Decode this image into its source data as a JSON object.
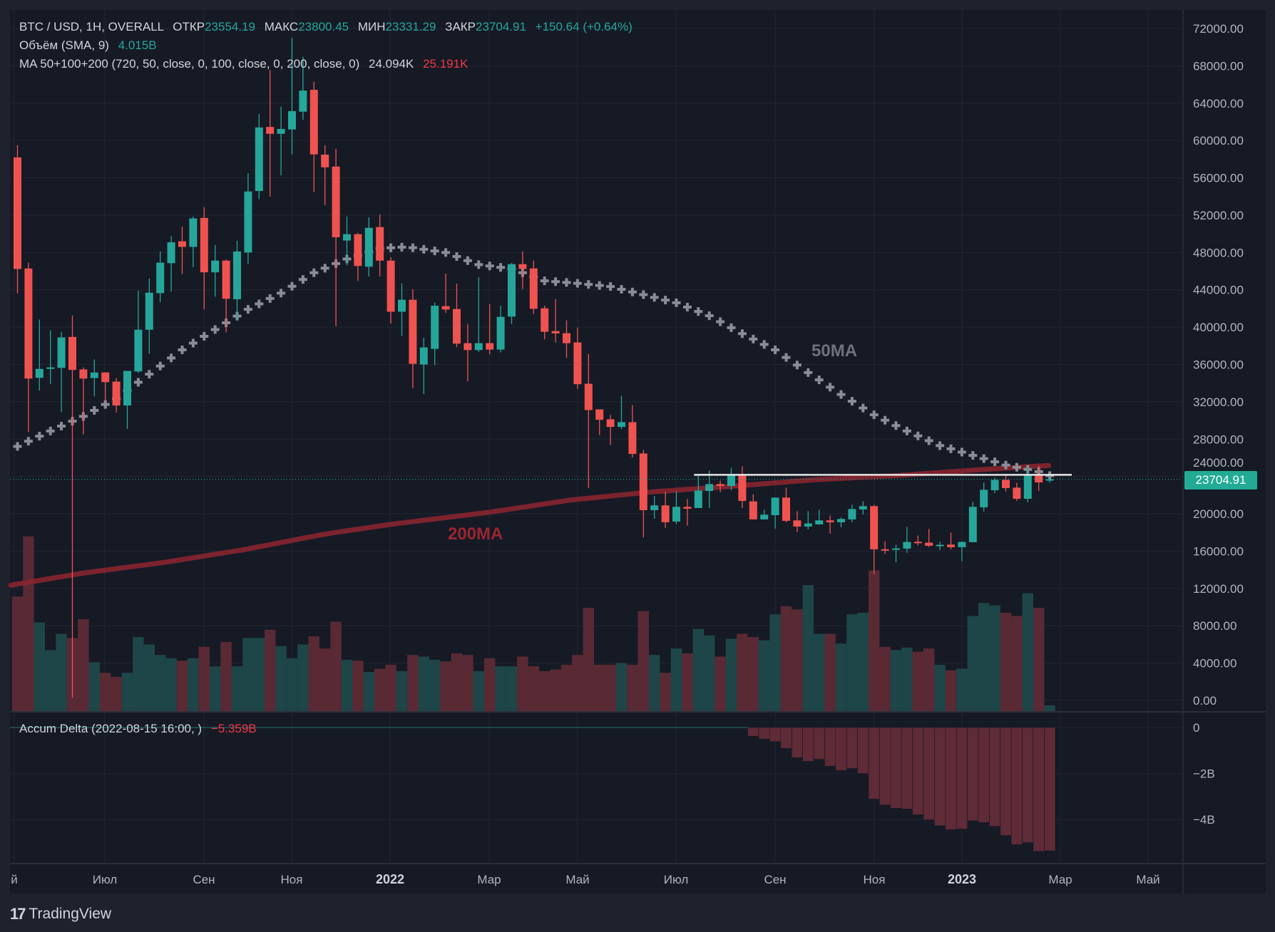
{
  "legend": {
    "symbol": "BTC / USD, 1H, OVERALL",
    "open_label": "ОТКР",
    "open": "23554.19",
    "high_label": "МАКС",
    "high": "23800.45",
    "low_label": "МИН",
    "low": "23331.29",
    "close_label": "ЗАКР",
    "close": "23704.91",
    "change": "+150.64 (+0.64%)",
    "volume_title": "Объём (SMA, 9)",
    "volume_value": "4.015B",
    "ma_title": "MA 50+100+200 (720, 50, close, 0, 100, close, 0, 200, close, 0)",
    "ma50_value": "24.094K",
    "ma200_value": "25.191K"
  },
  "delta_legend": {
    "title": "Accum Delta (2022-08-15 16:00, )",
    "value": "−5.359B"
  },
  "price_tag": "23704.91",
  "annotations": {
    "ma50_label": "50MA",
    "ma200_label": "200MA",
    "resistance_level": 24175
  },
  "price_axis": [
    "72000.00",
    "68000.00",
    "64000.00",
    "60000.00",
    "56000.00",
    "52000.00",
    "48000.00",
    "44000.00",
    "40000.00",
    "36000.00",
    "32000.00",
    "28000.00",
    "24000.00",
    "20000.00",
    "16000.00",
    "12000.00",
    "8000.00",
    "4000.00",
    "0.00"
  ],
  "delta_axis": [
    "0",
    "−2B",
    "−4B"
  ],
  "time_axis": [
    "й",
    "Июл",
    "Сен",
    "Ноя",
    "2022",
    "Мар",
    "Май",
    "Июл",
    "Сен",
    "Ноя",
    "2023",
    "Мар",
    "Май"
  ],
  "footer": {
    "brand": "TradingView",
    "brand_mark": "17"
  },
  "colors": {
    "up": "#26a69a",
    "down": "#ef5350",
    "ma50": "#787b86",
    "ma200": "#8e2630",
    "price_tag": "#22ab94"
  },
  "chart_data": {
    "type": "candlestick",
    "ohlc": [
      [
        58186,
        59494,
        43615,
        46230
      ],
      [
        46284,
        46910,
        28771,
        34490
      ],
      [
        34573,
        40809,
        33210,
        35526
      ],
      [
        35526,
        39666,
        33891,
        35690
      ],
      [
        35635,
        39502,
        30896,
        38903
      ],
      [
        38957,
        41245,
        300,
        35417
      ],
      [
        35472,
        35690,
        28500,
        34490
      ],
      [
        34545,
        36534,
        32585,
        35145
      ],
      [
        35145,
        35145,
        31985,
        34110
      ],
      [
        34164,
        34545,
        30841,
        31604
      ],
      [
        31604,
        35308,
        29100,
        35308
      ],
      [
        35253,
        43915,
        35090,
        39721
      ],
      [
        39721,
        45222,
        37161,
        43697
      ],
      [
        43642,
        48110,
        42662,
        46910
      ],
      [
        46856,
        49743,
        43806,
        49090
      ],
      [
        49198,
        50778,
        45712,
        48600
      ],
      [
        48600,
        51868,
        46420,
        51650
      ],
      [
        51704,
        52848,
        41900,
        45875
      ],
      [
        45875,
        48817,
        43261,
        47128
      ],
      [
        47128,
        47237,
        39448,
        43044
      ],
      [
        42989,
        49252,
        40700,
        48110
      ],
      [
        48000,
        56497,
        46801,
        54536
      ],
      [
        54591,
        62871,
        53720,
        61400
      ],
      [
        61455,
        67555,
        53992,
        60719
      ],
      [
        60719,
        63634,
        56280,
        61237
      ],
      [
        61182,
        71000,
        58513,
        63143
      ],
      [
        63089,
        68972,
        62217,
        65349
      ],
      [
        65431,
        66303,
        54482,
        58513
      ],
      [
        58486,
        59494,
        53066,
        57124
      ],
      [
        57206,
        59112,
        40100,
        49634
      ],
      [
        49280,
        51868,
        46638,
        49961
      ],
      [
        49961,
        50097,
        44950,
        46556
      ],
      [
        46475,
        51759,
        45440,
        50642
      ],
      [
        50724,
        52086,
        45440,
        47128
      ],
      [
        47128,
        47500,
        40374,
        41654
      ],
      [
        41654,
        44677,
        39067,
        42934
      ],
      [
        42935,
        44078,
        33456,
        36071
      ],
      [
        35995,
        38868,
        32818,
        37825
      ],
      [
        37672,
        42630,
        35944,
        42299
      ],
      [
        42248,
        45731,
        41537,
        41892
      ],
      [
        41943,
        44663,
        37851,
        38232
      ],
      [
        38283,
        40342,
        34190,
        37546
      ],
      [
        37546,
        45350,
        37342,
        38283
      ],
      [
        38283,
        42477,
        37088,
        37597
      ],
      [
        37597,
        42299,
        37291,
        41104
      ],
      [
        41130,
        46875,
        40342,
        46748
      ],
      [
        46748,
        48120,
        44079,
        46239
      ],
      [
        46290,
        47129,
        41410,
        41969
      ],
      [
        42019,
        42299,
        38690,
        39503
      ],
      [
        39579,
        43011,
        38359,
        39325
      ],
      [
        39350,
        40723,
        36707,
        38283
      ],
      [
        38359,
        39960,
        33402,
        33885
      ],
      [
        33936,
        37139,
        22777,
        31114
      ],
      [
        31191,
        31191,
        28445,
        30072
      ],
      [
        30123,
        30581,
        27378,
        29309
      ],
      [
        29309,
        32639,
        29081,
        29818
      ],
      [
        29818,
        31648,
        26030,
        26412
      ],
      [
        26463,
        26844,
        17464,
        20388
      ],
      [
        20388,
        21912,
        19474,
        20896
      ],
      [
        20896,
        22345,
        18481,
        19091
      ],
      [
        19168,
        22421,
        18913,
        20744
      ],
      [
        20744,
        21582,
        18735,
        20540
      ],
      [
        20617,
        24175,
        20617,
        22497
      ],
      [
        22446,
        24632,
        20617,
        23183
      ],
      [
        23183,
        23564,
        22294,
        22980
      ],
      [
        22980,
        24938,
        22523,
        24175
      ],
      [
        24175,
        25090,
        20616,
        21379
      ],
      [
        21328,
        22090,
        19396,
        19396
      ],
      [
        19396,
        20438,
        19396,
        19904
      ],
      [
        19853,
        21735,
        18405,
        21735
      ],
      [
        21735,
        22802,
        19091,
        19243
      ],
      [
        19294,
        20286,
        18023,
        18633
      ],
      [
        18633,
        20286,
        18328,
        18964
      ],
      [
        18862,
        20438,
        18862,
        19294
      ],
      [
        19294,
        19803,
        17871,
        19091
      ],
      [
        19091,
        19600,
        18557,
        19447
      ],
      [
        19396,
        20972,
        19091,
        20514
      ],
      [
        20464,
        21353,
        19930,
        20820
      ],
      [
        20820,
        20972,
        13524,
        16193
      ],
      [
        16200,
        17057,
        15684,
        16142
      ],
      [
        16142,
        16676,
        14820,
        16295
      ],
      [
        16270,
        18583,
        15812,
        16981
      ],
      [
        17000,
        17667,
        16600,
        16981
      ],
      [
        16905,
        18379,
        16422,
        16574
      ],
      [
        16574,
        17007,
        16117,
        16676
      ],
      [
        16702,
        17998,
        16193,
        16422
      ],
      [
        16422,
        17057,
        14922,
        16981
      ],
      [
        16956,
        21277,
        16956,
        20743
      ],
      [
        20692,
        23336,
        20235,
        22573
      ],
      [
        22522,
        23870,
        22217,
        23641
      ],
      [
        23641,
        24175,
        22396,
        22751
      ],
      [
        22802,
        23311,
        21379,
        21607
      ],
      [
        21607,
        25141,
        21226,
        24175
      ],
      [
        24175,
        25141,
        22446,
        23361
      ],
      [
        23554,
        23800,
        23331,
        23704.91
      ]
    ],
    "volume_relative": [
      7.1,
      10.8,
      5.5,
      3.8,
      4.8,
      4.55,
      5.7,
      3.05,
      2.4,
      2.15,
      2.4,
      4.6,
      4.15,
      3.5,
      3.3,
      3.15,
      3.3,
      4.0,
      2.8,
      4.3,
      2.8,
      4.55,
      4.55,
      5.05,
      4.05,
      3.3,
      4.15,
      4.65,
      3.9,
      5.55,
      3.2,
      3.15,
      2.45,
      2.65,
      2.9,
      2.5,
      3.5,
      3.4,
      3.2,
      3.1,
      3.6,
      3.5,
      2.5,
      3.3,
      2.8,
      2.8,
      3.4,
      2.8,
      2.5,
      2.6,
      2.9,
      3.5,
      6.4,
      2.9,
      2.9,
      3.0,
      2.9,
      6.2,
      3.5,
      2.4,
      3.9,
      3.6,
      5.1,
      4.7,
      3.4,
      4.5,
      4.8,
      4.6,
      4.4,
      6.0,
      6.5,
      6.3,
      7.8,
      4.8,
      4.8,
      4.2,
      6.0,
      6.1,
      8.7,
      4.0,
      3.8,
      3.95,
      3.7,
      3.9,
      2.9,
      2.55,
      2.65,
      5.9,
      6.7,
      6.55,
      6.1,
      5.9,
      7.3,
      6.4,
      0.4
    ],
    "accum_delta_start_index": 67,
    "accum_delta_B": [
      -0.38,
      -0.5,
      -0.61,
      -0.91,
      -1.31,
      -1.47,
      -1.38,
      -1.68,
      -1.87,
      -1.78,
      -2.0,
      -3.11,
      -3.37,
      -3.51,
      -3.54,
      -3.79,
      -4.01,
      -4.27,
      -4.44,
      -4.41,
      -4.05,
      -4.13,
      -4.29,
      -4.69,
      -5.09,
      -5.0,
      -5.38,
      -5.359
    ],
    "ma50_points": [
      [
        0,
        27220
      ],
      [
        3,
        28870
      ],
      [
        6,
        30440
      ],
      [
        9,
        32350
      ],
      [
        12,
        34960
      ],
      [
        15,
        37570
      ],
      [
        18,
        39740
      ],
      [
        21,
        41910
      ],
      [
        24,
        43650
      ],
      [
        27,
        45830
      ],
      [
        30,
        47300
      ],
      [
        33,
        48440
      ],
      [
        35.5,
        48600
      ],
      [
        39,
        48000
      ],
      [
        42,
        46700
      ],
      [
        45,
        46260
      ],
      [
        48,
        44960
      ],
      [
        51,
        44700
      ],
      [
        54,
        44350
      ],
      [
        57,
        43480
      ],
      [
        60,
        42610
      ],
      [
        63,
        41220
      ],
      [
        66,
        39300
      ],
      [
        69,
        37570
      ],
      [
        72,
        35130
      ],
      [
        75,
        32780
      ],
      [
        78,
        30610
      ],
      [
        81,
        28870
      ],
      [
        84,
        27310
      ],
      [
        87,
        26260
      ],
      [
        90,
        25220
      ],
      [
        93,
        24520
      ],
      [
        94,
        24094
      ]
    ],
    "ma200_points": [
      [
        -0.6,
        12350
      ],
      [
        6,
        13650
      ],
      [
        13.3,
        14780
      ],
      [
        20.7,
        16170
      ],
      [
        28,
        17830
      ],
      [
        34,
        18870
      ],
      [
        43,
        20170
      ],
      [
        50.4,
        21480
      ],
      [
        57.8,
        22350
      ],
      [
        65.2,
        22960
      ],
      [
        72.6,
        23650
      ],
      [
        80,
        24090
      ],
      [
        87.4,
        24700
      ],
      [
        94,
        25191
      ]
    ],
    "ylim": [
      0,
      72000
    ],
    "delta_ylim_B": [
      -5.5,
      0
    ]
  }
}
